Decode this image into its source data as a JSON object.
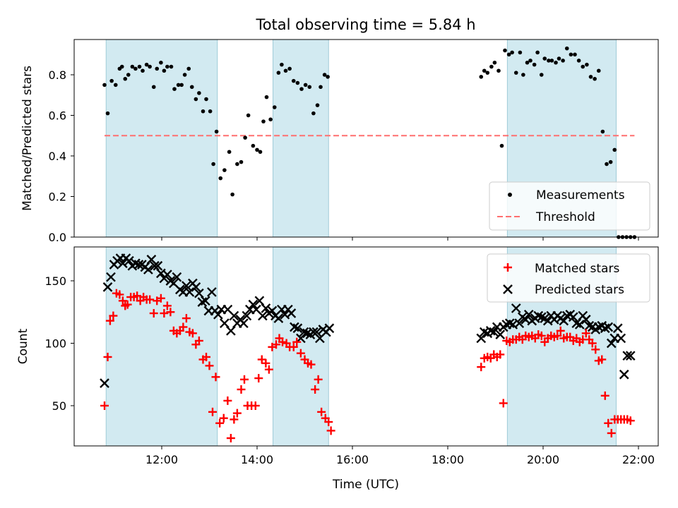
{
  "chart_data": {
    "type": "scatter",
    "title": "Total observing time = 5.84 h",
    "xlabel": "Time (UTC)",
    "x_ticks": [
      "12:00",
      "14:00",
      "16:00",
      "18:00",
      "20:00",
      "22:00"
    ],
    "shaded_intervals": [
      [
        "10:50",
        "13:10"
      ],
      [
        "14:20",
        "15:30"
      ],
      [
        "19:15",
        "21:32"
      ]
    ],
    "panels": [
      {
        "ylabel": "Matched/Predicted stars",
        "ylim": [
          0,
          0.97
        ],
        "y_ticks": [
          "0.0",
          "0.2",
          "0.4",
          "0.6",
          "0.8"
        ],
        "legend": "lower right",
        "series": [
          {
            "name": "Measurements",
            "marker": "dot",
            "color": "#000000",
            "x": [
              "10:48",
              "10:52",
              "10:57",
              "11:02",
              "11:07",
              "11:10",
              "11:14",
              "11:18",
              "11:23",
              "11:27",
              "11:32",
              "11:36",
              "11:41",
              "11:45",
              "11:50",
              "11:54",
              "11:59",
              "12:03",
              "12:07",
              "12:12",
              "12:16",
              "12:21",
              "12:25",
              "12:29",
              "12:34",
              "12:38",
              "12:43",
              "12:47",
              "12:52",
              "12:56",
              "13:01",
              "13:05",
              "13:09",
              "13:14",
              "13:19",
              "13:25",
              "13:29",
              "13:35",
              "13:40",
              "13:45",
              "13:49",
              "13:55",
              "14:00",
              "14:04",
              "14:08",
              "14:12",
              "14:17",
              "14:22",
              "14:27",
              "14:31",
              "14:36",
              "14:41",
              "14:46",
              "14:51",
              "14:56",
              "15:01",
              "15:06",
              "15:11",
              "15:16",
              "15:20",
              "15:25",
              "15:29",
              "18:42",
              "18:46",
              "18:50",
              "18:55",
              "18:59",
              "19:04",
              "19:08",
              "19:12",
              "19:17",
              "19:21",
              "19:26",
              "19:31",
              "19:35",
              "19:40",
              "19:44",
              "19:49",
              "19:53",
              "19:58",
              "20:02",
              "20:07",
              "20:11",
              "20:16",
              "20:20",
              "20:25",
              "20:30",
              "20:35",
              "20:40",
              "20:45",
              "20:50",
              "20:55",
              "21:00",
              "21:05",
              "21:10",
              "21:15",
              "21:20",
              "21:25",
              "21:30",
              "21:35",
              "21:40",
              "21:45",
              "21:50",
              "21:55"
            ],
            "y": [
              0.75,
              0.61,
              0.77,
              0.75,
              0.83,
              0.84,
              0.78,
              0.8,
              0.84,
              0.83,
              0.84,
              0.82,
              0.85,
              0.84,
              0.74,
              0.83,
              0.86,
              0.82,
              0.84,
              0.84,
              0.73,
              0.75,
              0.75,
              0.8,
              0.83,
              0.74,
              0.68,
              0.71,
              0.62,
              0.68,
              0.62,
              0.36,
              0.52,
              0.29,
              0.33,
              0.42,
              0.21,
              0.36,
              0.37,
              0.49,
              0.6,
              0.45,
              0.43,
              0.42,
              0.57,
              0.69,
              0.58,
              0.64,
              0.81,
              0.85,
              0.82,
              0.83,
              0.77,
              0.76,
              0.73,
              0.75,
              0.74,
              0.61,
              0.65,
              0.74,
              0.8,
              0.79,
              0.79,
              0.82,
              0.81,
              0.84,
              0.86,
              0.82,
              0.45,
              0.92,
              0.9,
              0.91,
              0.81,
              0.91,
              0.8,
              0.86,
              0.87,
              0.85,
              0.91,
              0.8,
              0.88,
              0.87,
              0.87,
              0.86,
              0.88,
              0.87,
              0.93,
              0.9,
              0.9,
              0.87,
              0.84,
              0.85,
              0.79,
              0.78,
              0.82,
              0.52,
              0.36,
              0.37,
              0.43,
              0.0,
              0.0,
              0.0,
              0.0,
              0.0
            ]
          },
          {
            "name": "Threshold",
            "marker": "dashed-line",
            "color": "#ff6f6f",
            "x": [
              "10:48",
              "21:55"
            ],
            "y": [
              0.5,
              0.5
            ]
          }
        ]
      },
      {
        "ylabel": "Count",
        "ylim": [
          18,
          175
        ],
        "y_ticks": [
          "50",
          "100",
          "150"
        ],
        "legend": "upper right",
        "series": [
          {
            "name": "Matched stars",
            "marker": "plus",
            "color": "#ff0000",
            "x": [
              "10:48",
              "10:52",
              "10:55",
              "10:59",
              "11:03",
              "11:07",
              "11:11",
              "11:14",
              "11:17",
              "11:21",
              "11:25",
              "11:29",
              "11:33",
              "11:37",
              "11:41",
              "11:45",
              "11:50",
              "11:54",
              "11:59",
              "12:03",
              "12:07",
              "12:11",
              "12:15",
              "12:19",
              "12:23",
              "12:27",
              "12:31",
              "12:35",
              "12:39",
              "12:43",
              "12:47",
              "12:52",
              "12:56",
              "13:00",
              "13:04",
              "13:08",
              "13:13",
              "13:18",
              "13:23",
              "13:27",
              "13:31",
              "13:35",
              "13:40",
              "13:44",
              "13:48",
              "13:53",
              "13:58",
              "14:02",
              "14:06",
              "14:11",
              "14:15",
              "14:19",
              "14:24",
              "14:28",
              "14:32",
              "14:37",
              "14:41",
              "14:46",
              "14:50",
              "14:55",
              "15:00",
              "15:04",
              "15:08",
              "15:13",
              "15:17",
              "15:21",
              "15:26",
              "15:30",
              "15:33",
              "18:42",
              "18:46",
              "18:50",
              "18:54",
              "18:58",
              "19:02",
              "19:06",
              "19:10",
              "19:14",
              "19:18",
              "19:22",
              "19:26",
              "19:30",
              "19:34",
              "19:38",
              "19:42",
              "19:46",
              "19:50",
              "19:54",
              "19:58",
              "20:02",
              "20:06",
              "20:10",
              "20:14",
              "20:18",
              "20:22",
              "20:26",
              "20:30",
              "20:34",
              "20:38",
              "20:42",
              "20:46",
              "20:50",
              "20:54",
              "20:58",
              "21:02",
              "21:06",
              "21:10",
              "21:14",
              "21:18",
              "21:22",
              "21:26",
              "21:30",
              "21:34",
              "21:38",
              "21:42",
              "21:46",
              "21:50"
            ],
            "y": [
              50,
              89,
              118,
              122,
              140,
              139,
              134,
              130,
              131,
              137,
              137,
              138,
              134,
              137,
              135,
              135,
              124,
              134,
              136,
              124,
              130,
              125,
              110,
              108,
              110,
              113,
              120,
              109,
              108,
              99,
              102,
              87,
              89,
              82,
              45,
              73,
              36,
              40,
              54,
              24,
              39,
              44,
              63,
              71,
              50,
              50,
              50,
              72,
              87,
              84,
              79,
              97,
              99,
              104,
              101,
              100,
              97,
              97,
              101,
              92,
              87,
              84,
              83,
              63,
              71,
              45,
              40,
              37,
              30,
              81,
              88,
              89,
              88,
              91,
              89,
              91,
              52,
              102,
              101,
              103,
              103,
              105,
              103,
              106,
              105,
              106,
              104,
              107,
              106,
              101,
              104,
              106,
              105,
              106,
              110,
              104,
              105,
              105,
              102,
              104,
              101,
              103,
              108,
              103,
              100,
              95,
              86,
              87,
              58,
              36,
              28,
              39,
              39,
              39,
              39,
              39,
              38
            ],
            "note_dup_removed": ""
          },
          {
            "name": "Predicted stars",
            "marker": "x",
            "color": "#000000",
            "x": [
              "10:48",
              "10:52",
              "10:56",
              "11:00",
              "11:04",
              "11:08",
              "11:11",
              "11:15",
              "11:19",
              "11:23",
              "11:27",
              "11:31",
              "11:35",
              "11:39",
              "11:43",
              "11:47",
              "11:51",
              "11:55",
              "11:59",
              "12:03",
              "12:07",
              "12:11",
              "12:15",
              "12:19",
              "12:23",
              "12:27",
              "12:31",
              "12:35",
              "12:39",
              "12:43",
              "12:47",
              "12:51",
              "12:55",
              "12:59",
              "13:03",
              "13:07",
              "13:11",
              "13:15",
              "13:19",
              "13:23",
              "13:27",
              "13:31",
              "13:35",
              "13:39",
              "13:43",
              "13:47",
              "13:51",
              "13:55",
              "13:59",
              "14:03",
              "14:07",
              "14:11",
              "14:15",
              "14:19",
              "14:23",
              "14:27",
              "14:31",
              "14:35",
              "14:39",
              "14:43",
              "14:47",
              "14:51",
              "14:55",
              "14:59",
              "15:03",
              "15:07",
              "15:11",
              "15:15",
              "15:19",
              "15:23",
              "15:27",
              "15:31",
              "18:42",
              "18:46",
              "18:50",
              "18:54",
              "18:58",
              "19:02",
              "19:06",
              "19:10",
              "19:14",
              "19:18",
              "19:22",
              "19:26",
              "19:30",
              "19:34",
              "19:38",
              "19:42",
              "19:46",
              "19:50",
              "19:54",
              "19:58",
              "20:02",
              "20:06",
              "20:10",
              "20:14",
              "20:18",
              "20:22",
              "20:26",
              "20:30",
              "20:34",
              "20:38",
              "20:42",
              "20:46",
              "20:50",
              "20:54",
              "20:58",
              "21:02",
              "21:06",
              "21:10",
              "21:14",
              "21:18",
              "21:22",
              "21:26",
              "21:30",
              "21:34",
              "21:38",
              "21:42",
              "21:46",
              "21:50"
            ],
            "y": [
              68,
              145,
              153,
              163,
              166,
              168,
              164,
              168,
              166,
              162,
              164,
              163,
              163,
              161,
              159,
              167,
              162,
              162,
              156,
              152,
              155,
              150,
              148,
              153,
              143,
              141,
              146,
              141,
              148,
              145,
              140,
              133,
              134,
              126,
              141,
              126,
              123,
              127,
              116,
              127,
              110,
              122,
              116,
              119,
              116,
              122,
              127,
              131,
              127,
              134,
              122,
              128,
              124,
              126,
              122,
              120,
              127,
              123,
              127,
              124,
              113,
              112,
              104,
              109,
              108,
              107,
              109,
              109,
              104,
              111,
              109,
              112,
              104,
              109,
              108,
              110,
              109,
              113,
              107,
              113,
              115,
              116,
              115,
              128,
              116,
              121,
              119,
              123,
              118,
              120,
              122,
              121,
              120,
              118,
              122,
              119,
              122,
              120,
              118,
              122,
              123,
              121,
              116,
              115,
              122,
              119,
              114,
              113,
              111,
              113,
              114,
              112,
              113,
              100,
              104,
              112,
              104,
              75,
              90,
              90
            ],
            "note_dup_removed": ""
          }
        ]
      }
    ]
  }
}
